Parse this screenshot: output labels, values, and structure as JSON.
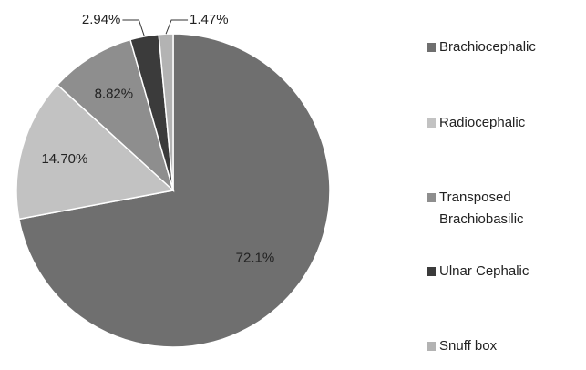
{
  "chart_data": {
    "type": "pie",
    "categories": [
      "Brachiocephalic",
      "Radiocephalic",
      "Transposed Brachiobasilic",
      "Ulnar Cephalic",
      "Snuff box"
    ],
    "values": [
      72.1,
      14.7,
      8.82,
      2.94,
      1.47
    ],
    "value_labels": [
      "72.1%",
      "14.70%",
      "8.82%",
      "2.94%",
      "1.47%"
    ],
    "colors": [
      "#6f6f6f",
      "#c2c2c2",
      "#8e8e8e",
      "#3b3b3b",
      "#b3b3b3"
    ],
    "legend": "right"
  }
}
